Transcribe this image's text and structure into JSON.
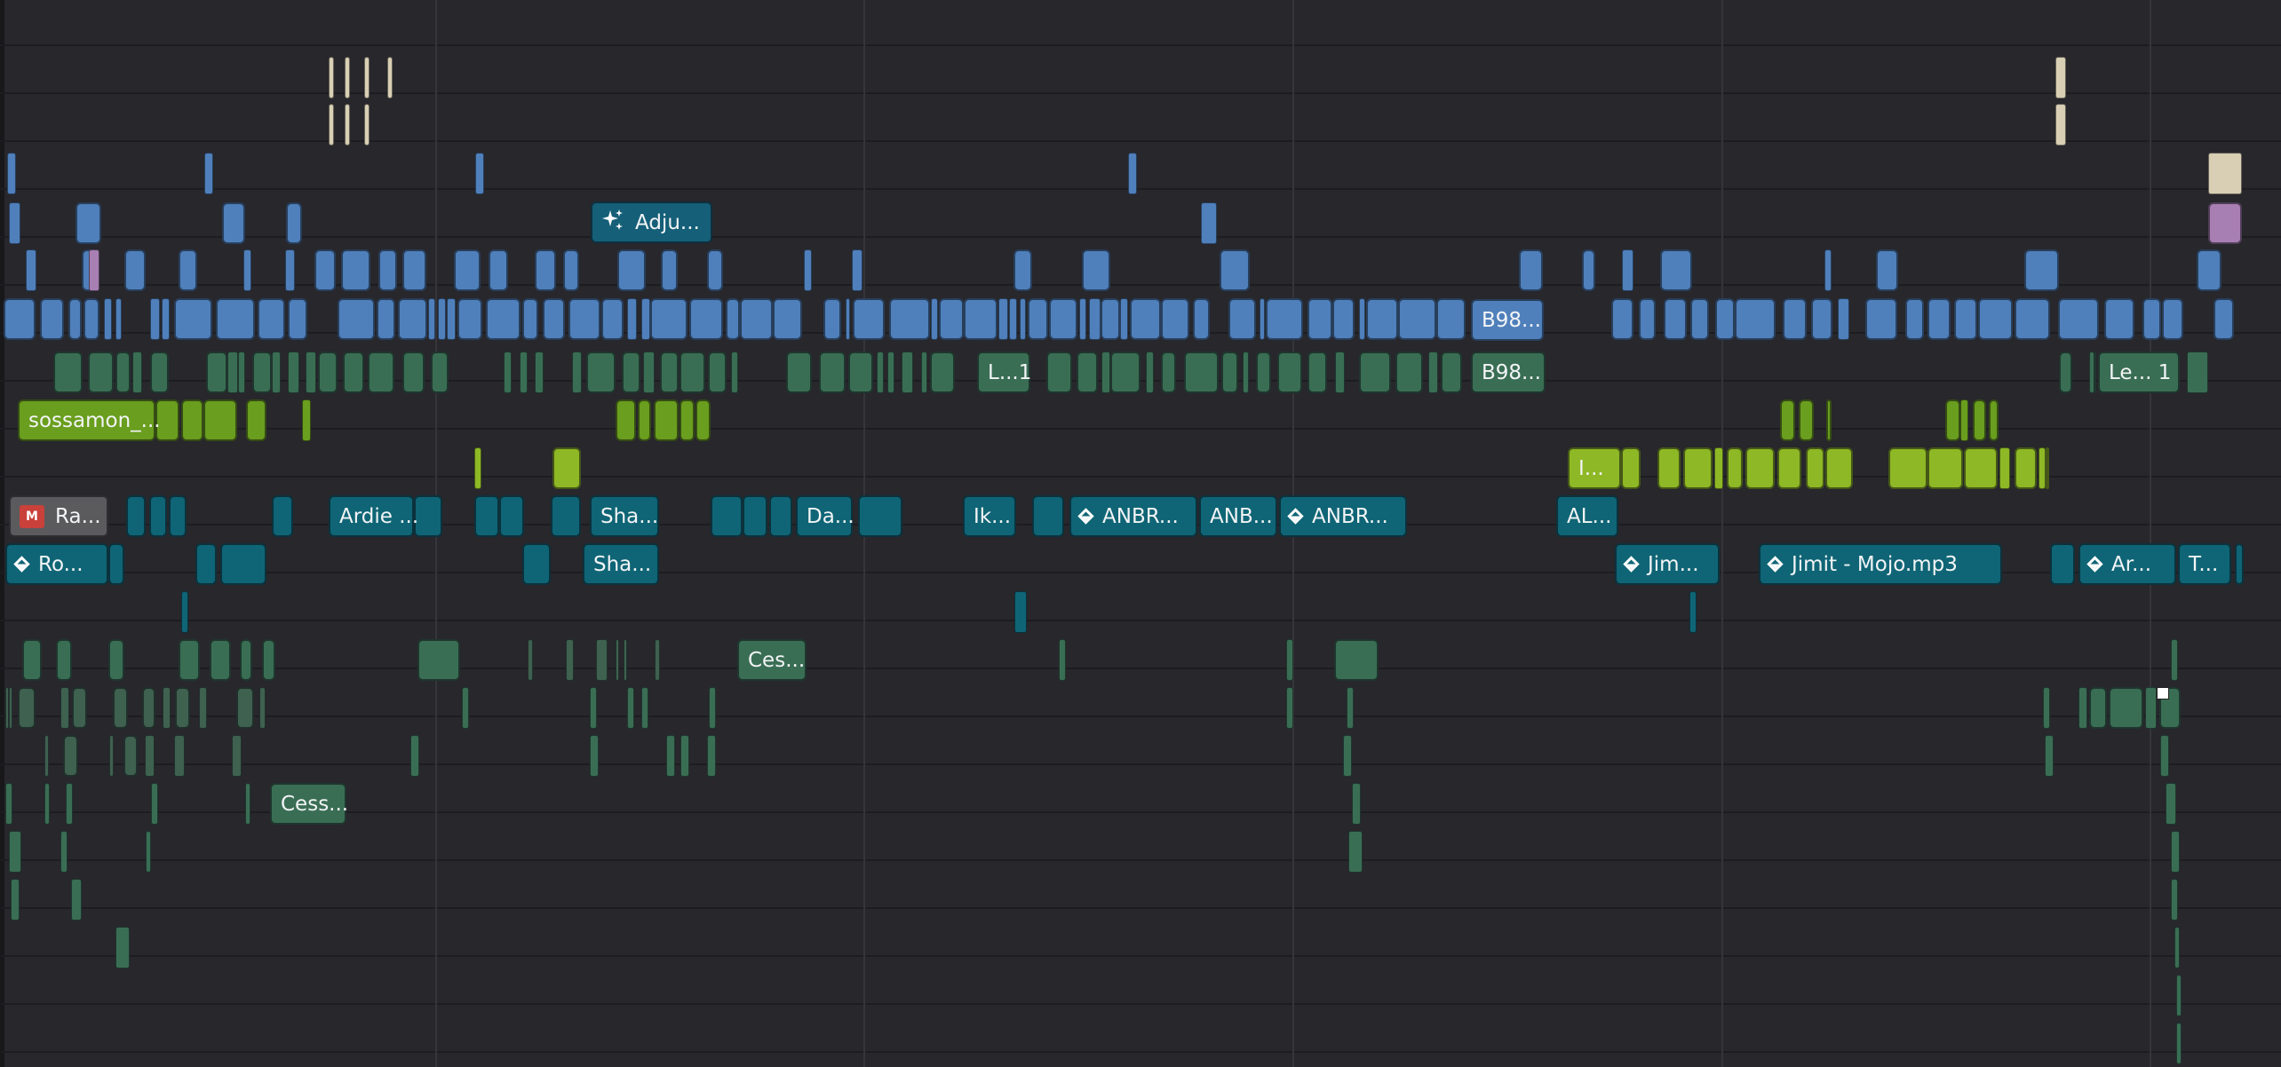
{
  "timeline": {
    "labeled_clips": [
      {
        "id": "adjust",
        "label": "Adju...",
        "icon": "sparkle-icon",
        "color": "#155f78"
      },
      {
        "id": "b98-top",
        "label": "B98...",
        "icon": "",
        "color": "#4f80bb"
      },
      {
        "id": "l1",
        "label": "L...1",
        "icon": "",
        "color": "#3a6e54"
      },
      {
        "id": "b98-mid",
        "label": "B98...",
        "icon": "",
        "color": "#3a6e54"
      },
      {
        "id": "le1",
        "label": "Le... 1",
        "icon": "",
        "color": "#3a6e54"
      },
      {
        "id": "sossamon",
        "label": "sossamon_...",
        "icon": "",
        "color": "#6a9e1e"
      },
      {
        "id": "lime-i",
        "label": "I...",
        "icon": "",
        "color": "#8eb825"
      },
      {
        "id": "ra",
        "label": "Ra...",
        "icon": "m-badge-icon",
        "color": "#5b5b5e"
      },
      {
        "id": "ardie",
        "label": "Ardie ...",
        "icon": "",
        "color": "#0f6575"
      },
      {
        "id": "sha1",
        "label": "Sha...",
        "icon": "",
        "color": "#0f6575"
      },
      {
        "id": "da",
        "label": "Da...",
        "icon": "",
        "color": "#0f6575"
      },
      {
        "id": "ik",
        "label": "Ik...",
        "icon": "",
        "color": "#0f6575"
      },
      {
        "id": "anbr1",
        "label": "ANBR...",
        "icon": "diamond-icon",
        "color": "#0f6575"
      },
      {
        "id": "anb",
        "label": "ANB...",
        "icon": "",
        "color": "#0f6575"
      },
      {
        "id": "anbr2",
        "label": "ANBR...",
        "icon": "diamond-icon",
        "color": "#0f6575"
      },
      {
        "id": "al",
        "label": "AL...",
        "icon": "",
        "color": "#0f6575"
      },
      {
        "id": "ro",
        "label": "Ro...",
        "icon": "diamond-icon",
        "color": "#0f6575"
      },
      {
        "id": "sha2",
        "label": "Sha...",
        "icon": "",
        "color": "#0f6575"
      },
      {
        "id": "jim",
        "label": "Jim...",
        "icon": "diamond-icon",
        "color": "#0f6575"
      },
      {
        "id": "jimit",
        "label": "Jimit - Mojo.mp3",
        "icon": "diamond-icon",
        "color": "#0f6575"
      },
      {
        "id": "ar",
        "label": "Ar...",
        "icon": "diamond-icon",
        "color": "#0f6575"
      },
      {
        "id": "t",
        "label": "T...",
        "icon": "",
        "color": "#0f6575"
      },
      {
        "id": "ces1",
        "label": "Ces...",
        "icon": "",
        "color": "#3a6e54"
      },
      {
        "id": "cess2",
        "label": "Cess...",
        "icon": "",
        "color": "#3a6e54"
      }
    ]
  }
}
